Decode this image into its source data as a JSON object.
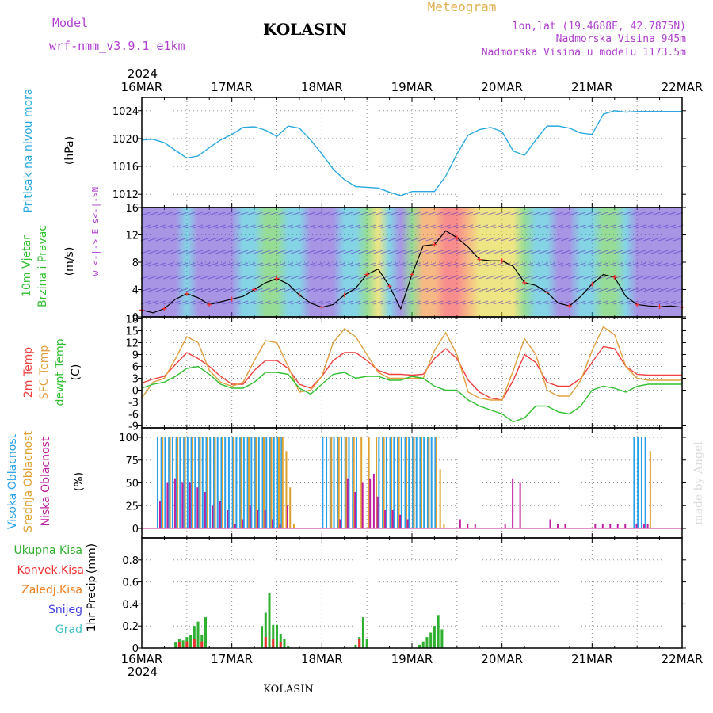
{
  "header": {
    "model_label": "Model",
    "model_name": "wrf-nmm_v3.9.1 e1km",
    "station": "KOLASIN",
    "meteogram": "Meteogram",
    "lonlat": "lon,lat (19.4688E, 42.7875N)",
    "altitude": "Nadmorska Visina 945m",
    "model_altitude": "Nadmorska Visina u modelu 1173.5m",
    "year": "2024",
    "footer_station": "KOLASIN",
    "credit": "made by Angel"
  },
  "time_axis": {
    "labels": [
      "16MAR",
      "17MAR",
      "18MAR",
      "19MAR",
      "20MAR",
      "21MAR",
      "22MAR"
    ],
    "year_label": "2024"
  },
  "colors": {
    "pressure": "#29a8e0",
    "temp_2m": "#f04040",
    "temp_sfc": "#e0a040",
    "dewpoint": "#30c030",
    "cloud_high": "#29a0e8",
    "cloud_mid": "#e0a030",
    "cloud_low": "#c020a0",
    "precip_total": "#30b030",
    "precip_conv": "#f03030",
    "precip_frozen": "#f08020",
    "snow": "#4040e0",
    "hail": "#40c0c0",
    "wind_label": "#30c030",
    "dir_label": "#b040d0"
  },
  "chart_data": [
    {
      "type": "line",
      "panel": "pressure",
      "ylabel_main": "Pritisak na nivou mora",
      "ylabel_unit": "(hPa)",
      "ylim": [
        1011,
        1025
      ],
      "yticks": [
        "1012",
        "1016",
        "1020",
        "1024"
      ],
      "xlim_hours": [
        0,
        144
      ],
      "grid": true,
      "x": [
        0,
        3,
        6,
        9,
        12,
        15,
        18,
        21,
        24,
        27,
        30,
        33,
        36,
        39,
        42,
        45,
        48,
        51,
        54,
        57,
        60,
        63,
        66,
        69,
        72,
        75,
        78,
        81,
        84,
        87,
        90,
        93,
        96,
        99,
        102,
        105,
        108,
        111,
        114,
        117,
        120,
        123,
        126,
        129,
        132,
        135,
        138,
        141,
        144
      ],
      "values": [
        1019.8,
        1019.9,
        1019.4,
        1018.3,
        1017.2,
        1017.5,
        1018.7,
        1019.8,
        1020.6,
        1021.6,
        1021.7,
        1021.2,
        1020.3,
        1021.8,
        1021.5,
        1019.8,
        1017.8,
        1015.6,
        1014.1,
        1013.1,
        1013.0,
        1012.9,
        1012.3,
        1011.8,
        1012.4,
        1012.4,
        1012.4,
        1014.6,
        1017.8,
        1020.5,
        1021.3,
        1021.6,
        1021.0,
        1018.2,
        1017.6,
        1019.8,
        1021.8,
        1021.8,
        1021.5,
        1020.8,
        1020.6,
        1023.5,
        1024.0,
        1023.8,
        1023.9,
        1023.9,
        1023.9,
        1023.9,
        1023.9
      ],
      "series": [
        {
          "name": "Pritisak na nivou mora",
          "values_key": "values"
        }
      ]
    },
    {
      "type": "line",
      "panel": "wind",
      "ylabel_main": "10m Vjetar",
      "ylabel_sub": "Brzina i Pravac",
      "ylabel_unit": "(m/s)",
      "direction_legend": "w <-|-> E  s<-|->N",
      "ylim": [
        0,
        16
      ],
      "yticks": [
        "0",
        "4",
        "8",
        "12",
        "16"
      ],
      "xlim_hours": [
        0,
        144
      ],
      "grid": true,
      "x": [
        0,
        3,
        6,
        9,
        12,
        15,
        18,
        21,
        24,
        27,
        30,
        33,
        36,
        39,
        42,
        45,
        48,
        51,
        54,
        57,
        60,
        63,
        66,
        69,
        72,
        75,
        78,
        81,
        84,
        87,
        90,
        93,
        96,
        99,
        102,
        105,
        108,
        111,
        114,
        117,
        120,
        123,
        126,
        129,
        132,
        135,
        138,
        141,
        144
      ],
      "values": [
        1.0,
        0.6,
        1.2,
        2.6,
        3.4,
        2.8,
        1.8,
        2.2,
        2.6,
        3.0,
        4.0,
        5.0,
        5.6,
        4.8,
        3.2,
        2.0,
        1.4,
        1.8,
        3.2,
        4.2,
        6.2,
        7.0,
        4.5,
        1.2,
        6.2,
        10.4,
        10.6,
        12.6,
        11.6,
        10.2,
        8.4,
        8.2,
        8.2,
        7.4,
        5.0,
        4.6,
        3.6,
        2.0,
        1.6,
        3.0,
        4.8,
        6.2,
        5.8,
        3.0,
        1.8,
        1.6,
        1.5,
        1.6,
        1.4
      ],
      "series": [
        {
          "name": "10m Vjetar",
          "values_key": "values"
        }
      ]
    },
    {
      "type": "line",
      "panel": "temperature",
      "ylabel_main": "2m Temp",
      "ylabel_sub": "SFC Temp",
      "ylabel_sub2": "dewpt Temp",
      "ylabel_unit": "(C)",
      "ylim": [
        -9.5,
        18.5
      ],
      "yticks": [
        "-9",
        "-6",
        "-3",
        "0",
        "3",
        "6",
        "9",
        "12",
        "15",
        "18"
      ],
      "xlim_hours": [
        0,
        144
      ],
      "grid": true,
      "x": [
        0,
        3,
        6,
        9,
        12,
        15,
        18,
        21,
        24,
        27,
        30,
        33,
        36,
        39,
        42,
        45,
        48,
        51,
        54,
        57,
        60,
        63,
        66,
        69,
        72,
        75,
        78,
        81,
        84,
        87,
        90,
        93,
        96,
        99,
        102,
        105,
        108,
        111,
        114,
        117,
        120,
        123,
        126,
        129,
        132,
        135,
        138,
        141,
        144
      ],
      "series": [
        {
          "name": "2m Temp",
          "color_key": "temp_2m",
          "values": [
            1.8,
            2.8,
            3.5,
            6.5,
            9.5,
            8.0,
            6.0,
            3.5,
            1.5,
            1.5,
            5.0,
            7.5,
            7.5,
            5.5,
            1.5,
            0.5,
            3.5,
            7.5,
            9.5,
            9.5,
            7.5,
            5.0,
            4.0,
            4.0,
            3.8,
            4.0,
            8.0,
            10.5,
            8.0,
            2.5,
            -0.5,
            -2.0,
            -2.5,
            2.5,
            9.0,
            7.0,
            2.0,
            1.0,
            1.0,
            3.0,
            7.0,
            11.0,
            10.5,
            6.0,
            4.0,
            3.8,
            3.8,
            3.8,
            3.8
          ]
        },
        {
          "name": "SFC Temp",
          "color_key": "temp_sfc",
          "values": [
            -2.0,
            2.0,
            3.0,
            8.0,
            13.5,
            12.0,
            5.0,
            2.0,
            1.0,
            2.0,
            7.5,
            12.5,
            12.0,
            6.0,
            -0.5,
            0.0,
            3.5,
            12.0,
            15.5,
            13.5,
            9.0,
            4.5,
            3.0,
            3.0,
            3.0,
            3.0,
            10.0,
            14.5,
            9.0,
            -0.5,
            -2.0,
            -2.5,
            -2.5,
            5.0,
            13.0,
            9.0,
            0.0,
            -1.5,
            -1.5,
            2.5,
            10.0,
            16.0,
            14.0,
            6.0,
            3.0,
            2.5,
            2.5,
            2.5,
            2.5
          ]
        },
        {
          "name": "dewpt Temp",
          "color_key": "dewpoint",
          "values": [
            0.5,
            1.5,
            2.0,
            3.5,
            5.5,
            6.0,
            4.0,
            1.5,
            0.5,
            0.5,
            2.0,
            4.5,
            4.5,
            4.0,
            0.5,
            -1.0,
            1.5,
            4.0,
            4.5,
            3.0,
            3.5,
            3.5,
            2.5,
            2.5,
            3.5,
            3.0,
            1.0,
            0.0,
            0.0,
            -2.5,
            -4.0,
            -5.0,
            -6.0,
            -8.0,
            -7.0,
            -4.0,
            -4.0,
            -5.5,
            -6.0,
            -4.0,
            0.0,
            1.0,
            0.5,
            -0.5,
            1.0,
            1.5,
            1.5,
            1.5,
            1.5
          ]
        }
      ]
    },
    {
      "type": "bar",
      "panel": "clouds",
      "ylabel_main": "Visoka Oblacnost",
      "ylabel_sub": "Srednja Oblacnost",
      "ylabel_sub2": "Niska Oblacnost",
      "ylabel_unit": "(%)",
      "ylim": [
        0,
        100
      ],
      "yticks": [
        "0",
        "25",
        "50",
        "75",
        "100"
      ],
      "xlim_hours": [
        0,
        144
      ],
      "grid": true,
      "series": [
        {
          "name": "Visoka Oblacnost",
          "color_key": "cloud_high",
          "x": [
            4,
            5,
            6,
            7,
            8,
            9,
            10,
            11,
            12,
            13,
            14,
            15,
            16,
            17,
            18,
            19,
            20,
            21,
            22,
            23,
            24,
            25,
            26,
            27,
            28,
            29,
            30,
            31,
            32,
            33,
            34,
            35,
            36,
            37,
            48,
            49,
            50,
            51,
            52,
            53,
            54,
            55,
            56,
            57,
            63,
            64,
            65,
            66,
            67,
            68,
            69,
            70,
            71,
            72,
            73,
            74,
            75,
            76,
            77,
            78,
            131,
            132,
            133,
            134
          ],
          "values": [
            100,
            100,
            100,
            100,
            100,
            100,
            100,
            100,
            100,
            100,
            100,
            100,
            100,
            100,
            100,
            100,
            100,
            100,
            100,
            100,
            100,
            100,
            100,
            100,
            100,
            100,
            100,
            100,
            100,
            100,
            100,
            100,
            100,
            100,
            100,
            100,
            100,
            100,
            100,
            100,
            100,
            100,
            100,
            100,
            100,
            100,
            100,
            100,
            100,
            100,
            100,
            100,
            100,
            100,
            100,
            100,
            100,
            100,
            100,
            100,
            100,
            100,
            100,
            100
          ]
        },
        {
          "name": "Srednja Oblacnost",
          "color_key": "cloud_mid",
          "x": [
            5,
            7,
            9,
            11,
            13,
            15,
            17,
            19,
            21,
            24,
            26,
            28,
            30,
            32,
            34,
            36,
            37,
            38,
            39,
            40,
            50,
            52,
            54,
            56,
            58,
            60,
            62,
            64,
            66,
            68,
            70,
            72,
            74,
            76,
            78,
            79,
            80,
            135
          ],
          "values": [
            100,
            100,
            100,
            100,
            100,
            100,
            100,
            100,
            100,
            100,
            100,
            100,
            100,
            100,
            100,
            100,
            100,
            85,
            45,
            5,
            100,
            100,
            100,
            100,
            100,
            100,
            100,
            100,
            100,
            100,
            100,
            100,
            100,
            100,
            100,
            65,
            5,
            85
          ]
        },
        {
          "name": "Niska Oblacnost",
          "color_key": "cloud_low",
          "x": [
            4,
            6,
            8,
            10,
            12,
            14,
            16,
            18,
            20,
            22,
            24,
            26,
            28,
            30,
            32,
            34,
            36,
            38,
            52,
            54,
            56,
            58,
            60,
            61,
            62,
            64,
            66,
            68,
            70,
            84,
            86,
            88,
            96,
            98,
            100,
            108,
            110,
            112,
            120,
            122,
            124,
            126,
            128,
            131,
            133,
            134
          ],
          "values": [
            30,
            50,
            55,
            50,
            50,
            45,
            40,
            25,
            30,
            20,
            5,
            10,
            25,
            20,
            20,
            10,
            5,
            25,
            10,
            55,
            40,
            50,
            55,
            60,
            35,
            20,
            20,
            15,
            10,
            10,
            5,
            5,
            5,
            55,
            50,
            10,
            5,
            5,
            5,
            5,
            5,
            5,
            5,
            5,
            5,
            5
          ]
        }
      ]
    },
    {
      "type": "bar",
      "panel": "precip",
      "ylabel_main": "1hr Precip",
      "ylabel_unit": "(mm)",
      "legend": [
        "Ukupna Kisa",
        "Konvek.Kisa",
        "Zaledj.Kisa",
        "Snijeg",
        "Grad"
      ],
      "ylim": [
        0,
        1.0
      ],
      "yticks": [
        "0",
        "0.2",
        "0.4",
        "0.6",
        "0.8"
      ],
      "xlim_hours": [
        0,
        144
      ],
      "grid": true,
      "series": [
        {
          "name": "Ukupna Kisa",
          "color_key": "precip_total",
          "x": [
            9,
            10,
            11,
            12,
            13,
            14,
            15,
            16,
            17,
            32,
            33,
            34,
            35,
            36,
            37,
            38,
            39,
            57,
            58,
            59,
            60,
            74,
            75,
            76,
            77,
            78,
            79,
            80
          ],
          "values": [
            0.05,
            0.08,
            0.07,
            0.1,
            0.12,
            0.2,
            0.24,
            0.12,
            0.28,
            0.2,
            0.32,
            0.5,
            0.21,
            0.21,
            0.13,
            0.08,
            0.02,
            0.03,
            0.1,
            0.28,
            0.08,
            0.03,
            0.06,
            0.1,
            0.14,
            0.2,
            0.3,
            0.17
          ]
        },
        {
          "name": "Konvek.Kisa",
          "color_key": "precip_conv",
          "x": [
            10,
            12,
            14,
            16,
            33,
            35,
            37,
            58
          ],
          "values": [
            0.05,
            0.06,
            0.08,
            0.06,
            0.1,
            0.08,
            0.05,
            0.08
          ]
        }
      ]
    }
  ]
}
